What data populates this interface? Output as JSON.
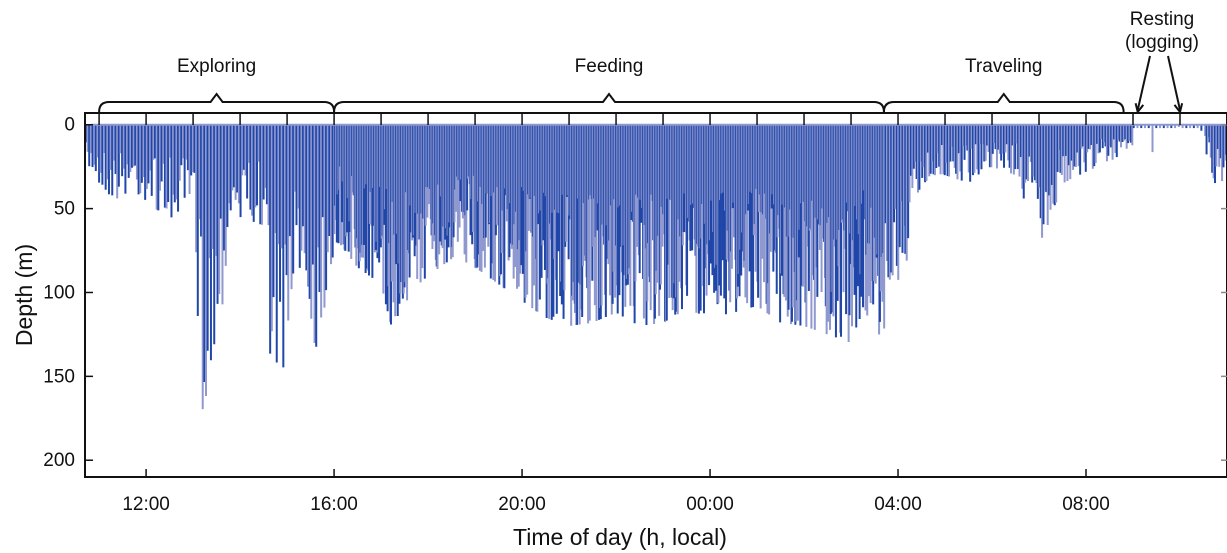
{
  "chart_data": {
    "type": "line",
    "xlabel": "Time of day (h, local)",
    "ylabel": "Depth (m)",
    "x_tick_labels": [
      "12:00",
      "16:00",
      "20:00",
      "00:00",
      "04:00",
      "08:00"
    ],
    "x_tick_hours": [
      12,
      16,
      20,
      24,
      28,
      32
    ],
    "xlim_hours": [
      10.7,
      35.0
    ],
    "ylim": [
      210,
      -7
    ],
    "y_ticks": [
      0,
      50,
      100,
      150,
      200
    ],
    "y_tick_labels": [
      "0",
      "50",
      "100",
      "150",
      "200"
    ],
    "grid": false,
    "series_colors": {
      "dark": "#1f46a8",
      "light": "#8f98cf"
    },
    "phases": [
      {
        "label": "Exploring",
        "start": 11.0,
        "end": 16.0
      },
      {
        "label": "Feeding",
        "start": 16.0,
        "end": 27.7
      },
      {
        "label": "Traveling",
        "start": 27.7,
        "end": 32.8
      }
    ],
    "resting": {
      "label_line1": "Resting",
      "label_line2": "(logging)",
      "arrow_targets": [
        33.1,
        34.0
      ]
    },
    "dive_envelope": [
      [
        10.9,
        30
      ],
      [
        11.3,
        48
      ],
      [
        11.6,
        40
      ],
      [
        12.0,
        47
      ],
      [
        12.5,
        55
      ],
      [
        13.0,
        58
      ],
      [
        13.2,
        170
      ],
      [
        13.4,
        150
      ],
      [
        13.6,
        115
      ],
      [
        13.8,
        60
      ],
      [
        14.0,
        55
      ],
      [
        14.5,
        60
      ],
      [
        14.7,
        170
      ],
      [
        14.9,
        150
      ],
      [
        15.2,
        70
      ],
      [
        15.4,
        120
      ],
      [
        15.6,
        135
      ],
      [
        15.9,
        95
      ],
      [
        16.1,
        70
      ],
      [
        16.5,
        85
      ],
      [
        17.0,
        95
      ],
      [
        17.3,
        130
      ],
      [
        17.6,
        100
      ],
      [
        18.0,
        90
      ],
      [
        18.5,
        80
      ],
      [
        19.0,
        85
      ],
      [
        19.5,
        95
      ],
      [
        20.0,
        105
      ],
      [
        20.5,
        115
      ],
      [
        21.0,
        120
      ],
      [
        21.5,
        118
      ],
      [
        22.0,
        112
      ],
      [
        22.5,
        120
      ],
      [
        23.0,
        118
      ],
      [
        23.5,
        110
      ],
      [
        24.0,
        115
      ],
      [
        24.5,
        112
      ],
      [
        25.0,
        108
      ],
      [
        25.5,
        118
      ],
      [
        26.0,
        120
      ],
      [
        26.5,
        125
      ],
      [
        27.0,
        130
      ],
      [
        27.3,
        110
      ],
      [
        27.6,
        135
      ],
      [
        28.0,
        108
      ],
      [
        28.5,
        35
      ],
      [
        29.0,
        30
      ],
      [
        29.5,
        35
      ],
      [
        30.0,
        25
      ],
      [
        30.5,
        30
      ],
      [
        31.0,
        70
      ],
      [
        31.2,
        62
      ],
      [
        31.5,
        35
      ],
      [
        32.0,
        28
      ],
      [
        32.5,
        22
      ],
      [
        32.9,
        15
      ],
      [
        33.3,
        2
      ],
      [
        33.6,
        45
      ],
      [
        33.9,
        2
      ],
      [
        34.4,
        2
      ],
      [
        34.8,
        40
      ],
      [
        35.0,
        30
      ]
    ]
  }
}
